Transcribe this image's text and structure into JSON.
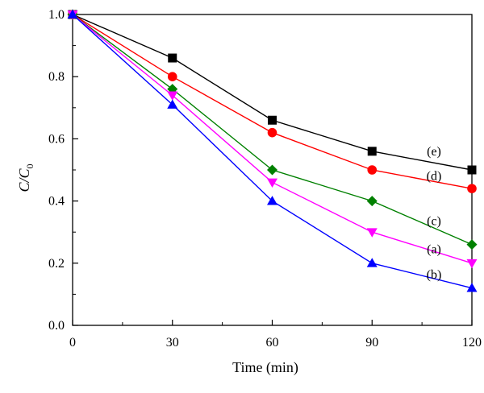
{
  "chart_data": {
    "type": "line",
    "title": "",
    "xlabel": "Time (min)",
    "ylabel_main": "C/C",
    "ylabel_sub": "0",
    "xlim": [
      0,
      120
    ],
    "ylim": [
      0.0,
      1.0
    ],
    "x_ticks": [
      0,
      30,
      60,
      90,
      120
    ],
    "x_tick_labels": [
      "0",
      "30",
      "60",
      "90",
      "120"
    ],
    "y_ticks": [
      0.0,
      0.2,
      0.4,
      0.6,
      0.8,
      1.0
    ],
    "y_tick_labels": [
      "0.0",
      "0.2",
      "0.4",
      "0.6",
      "0.8",
      "1.0"
    ],
    "grid": false,
    "x": [
      0,
      30,
      60,
      90,
      120
    ],
    "series": [
      {
        "name": "(e)",
        "color": "#000000",
        "marker": "square",
        "values": [
          1.0,
          0.86,
          0.66,
          0.56,
          0.5
        ]
      },
      {
        "name": "(d)",
        "color": "#ff0000",
        "marker": "circle",
        "values": [
          1.0,
          0.8,
          0.62,
          0.5,
          0.44
        ]
      },
      {
        "name": "(c)",
        "color": "#008000",
        "marker": "diamond",
        "values": [
          1.0,
          0.76,
          0.5,
          0.4,
          0.26
        ]
      },
      {
        "name": "(a)",
        "color": "#ff00ff",
        "marker": "triangle-down",
        "values": [
          1.0,
          0.74,
          0.46,
          0.3,
          0.2
        ]
      },
      {
        "name": "(b)",
        "color": "#0000ff",
        "marker": "triangle-up",
        "values": [
          1.0,
          0.71,
          0.4,
          0.2,
          0.12
        ]
      }
    ]
  }
}
